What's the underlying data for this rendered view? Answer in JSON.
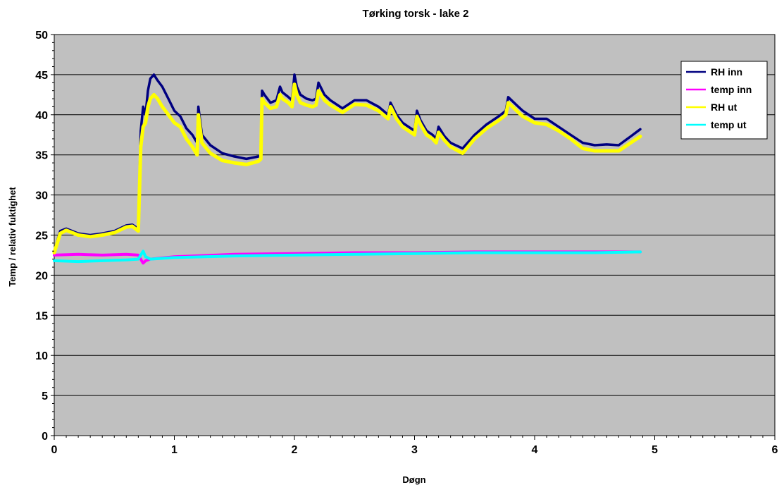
{
  "chart_data": {
    "type": "line",
    "title": "Tørking torsk - lake 2",
    "xlabel": "Døgn",
    "ylabel": "Temp / relativ fuktighet",
    "xlim": [
      0,
      6
    ],
    "ylim": [
      0,
      50
    ],
    "x_ticks": [
      0,
      1,
      2,
      3,
      4,
      5,
      6
    ],
    "y_ticks": [
      0,
      5,
      10,
      15,
      20,
      25,
      30,
      35,
      40,
      45,
      50
    ],
    "grid": "horizontal",
    "legend_position": "top-right",
    "plot_background": "#c0c0c0",
    "series": [
      {
        "name": "RH inn",
        "color": "#000080",
        "x": [
          0,
          0.05,
          0.1,
          0.2,
          0.3,
          0.4,
          0.5,
          0.6,
          0.65,
          0.7,
          0.72,
          0.74,
          0.76,
          0.78,
          0.8,
          0.83,
          0.86,
          0.9,
          0.95,
          1.0,
          1.05,
          1.1,
          1.15,
          1.19,
          1.2,
          1.23,
          1.3,
          1.4,
          1.5,
          1.6,
          1.7,
          1.72,
          1.73,
          1.75,
          1.8,
          1.85,
          1.88,
          1.9,
          1.95,
          1.98,
          2.0,
          2.02,
          2.05,
          2.1,
          2.15,
          2.18,
          2.2,
          2.25,
          2.3,
          2.4,
          2.5,
          2.6,
          2.7,
          2.78,
          2.8,
          2.85,
          2.9,
          2.95,
          3.0,
          3.02,
          3.05,
          3.1,
          3.15,
          3.18,
          3.2,
          3.25,
          3.3,
          3.4,
          3.5,
          3.6,
          3.7,
          3.76,
          3.78,
          3.85,
          3.9,
          4.0,
          4.1,
          4.2,
          4.3,
          4.4,
          4.5,
          4.6,
          4.7,
          4.8,
          4.88
        ],
        "y": [
          23,
          25.5,
          25.8,
          25.2,
          25,
          25.2,
          25.5,
          26.2,
          26.3,
          25.8,
          38,
          41,
          40,
          43,
          44.5,
          45,
          44.3,
          43.5,
          42,
          40.5,
          39.8,
          38.3,
          37.5,
          36.5,
          41,
          37.5,
          36.2,
          35.2,
          34.8,
          34.5,
          34.8,
          35,
          43,
          42.5,
          41.5,
          41.8,
          43.5,
          42.8,
          42.2,
          41.8,
          45,
          43.5,
          42.5,
          42,
          41.8,
          42,
          44,
          42.5,
          41.8,
          40.8,
          41.8,
          41.8,
          41,
          40,
          41.5,
          40,
          39,
          38.5,
          38,
          40.5,
          39.3,
          38,
          37.5,
          37,
          38.5,
          37.3,
          36.5,
          35.8,
          37.5,
          38.8,
          39.8,
          40.5,
          42.2,
          41.2,
          40.5,
          39.5,
          39.5,
          38.5,
          37.5,
          36.5,
          36.2,
          36.3,
          36.2,
          37.3,
          38.2
        ]
      },
      {
        "name": "temp inn",
        "color": "#ff00ff",
        "x": [
          0,
          0.2,
          0.4,
          0.6,
          0.7,
          0.74,
          0.76,
          0.8,
          1.0,
          1.5,
          2.0,
          2.5,
          3.0,
          3.5,
          4.0,
          4.5,
          4.88
        ],
        "y": [
          22.5,
          22.6,
          22.5,
          22.6,
          22.5,
          21.5,
          21.8,
          22,
          22.3,
          22.6,
          22.7,
          22.8,
          22.8,
          22.9,
          22.9,
          22.9,
          22.9
        ]
      },
      {
        "name": "RH ut",
        "color": "#ffff00",
        "x": [
          0,
          0.05,
          0.1,
          0.2,
          0.3,
          0.4,
          0.5,
          0.6,
          0.65,
          0.7,
          0.72,
          0.74,
          0.76,
          0.78,
          0.8,
          0.83,
          0.86,
          0.9,
          0.95,
          1.0,
          1.05,
          1.1,
          1.15,
          1.19,
          1.2,
          1.23,
          1.3,
          1.4,
          1.5,
          1.6,
          1.7,
          1.72,
          1.73,
          1.75,
          1.8,
          1.85,
          1.88,
          1.9,
          1.95,
          1.98,
          2.0,
          2.02,
          2.05,
          2.1,
          2.15,
          2.18,
          2.2,
          2.25,
          2.3,
          2.4,
          2.5,
          2.6,
          2.7,
          2.78,
          2.8,
          2.85,
          2.9,
          2.95,
          3.0,
          3.02,
          3.05,
          3.1,
          3.15,
          3.18,
          3.2,
          3.25,
          3.3,
          3.4,
          3.5,
          3.6,
          3.7,
          3.76,
          3.78,
          3.85,
          3.9,
          4.0,
          4.1,
          4.2,
          4.3,
          4.4,
          4.5,
          4.6,
          4.7,
          4.8,
          4.88
        ],
        "y": [
          22.8,
          25.2,
          25.6,
          25,
          24.8,
          25,
          25.3,
          26,
          26.1,
          25.5,
          36,
          38.5,
          39,
          41,
          42,
          42.5,
          42,
          41,
          40,
          39,
          38.5,
          37,
          36,
          35,
          40,
          36.5,
          35.2,
          34.3,
          34,
          33.8,
          34.2,
          34.5,
          42,
          41.5,
          40.8,
          41,
          42.5,
          42,
          41.5,
          41,
          43.8,
          42.5,
          41.5,
          41.2,
          41,
          41.2,
          43,
          41.8,
          41.2,
          40.3,
          41.3,
          41.2,
          40.5,
          39.5,
          41,
          39.5,
          38.5,
          38,
          37.5,
          39.8,
          38.8,
          37.5,
          37,
          36.5,
          37.8,
          36.8,
          36,
          35.2,
          37,
          38.3,
          39.3,
          40,
          41.5,
          40.5,
          39.8,
          39,
          38.8,
          38,
          37,
          35.8,
          35.5,
          35.5,
          35.5,
          36.5,
          37.3
        ]
      },
      {
        "name": "temp ut",
        "color": "#00ffff",
        "x": [
          0,
          0.2,
          0.4,
          0.6,
          0.7,
          0.74,
          0.76,
          0.8,
          1.0,
          1.5,
          2.0,
          2.5,
          3.0,
          3.5,
          4.0,
          4.5,
          4.88
        ],
        "y": [
          21.8,
          21.7,
          21.8,
          21.9,
          22,
          23,
          22.3,
          22,
          22.2,
          22.4,
          22.5,
          22.6,
          22.7,
          22.8,
          22.8,
          22.8,
          22.9
        ]
      }
    ]
  }
}
